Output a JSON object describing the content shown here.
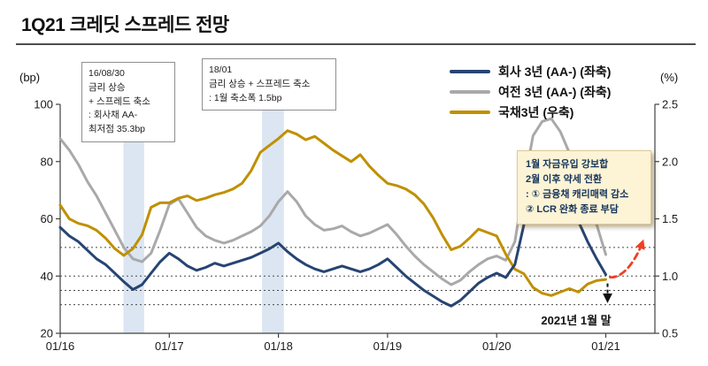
{
  "title": "1Q21 크레딧 스프레드 전망",
  "colors": {
    "corporate": "#274472",
    "capital": "#a9a9a9",
    "treasury": "#bf9000",
    "band": "#dce6f2",
    "axis": "#404040",
    "dotted_line": "#4a4a4a",
    "forecast_arrow": "#ee4023",
    "marker_black": "#111111",
    "outlook_box_bg": "#fdf3d5"
  },
  "annotations": {
    "box_1608": {
      "lines": [
        "16/08/30",
        "금리 상승",
        "+ 스프레드 축소",
        ": 회사채 AA-",
        "최저점 35.3bp"
      ]
    },
    "box_1801": {
      "lines": [
        "18/01",
        "금리 상승 + 스프레드 축소",
        ": 1월 축소폭 1.5bp"
      ]
    },
    "outlook_box": {
      "lines": [
        "1월 자금유입 강보합",
        "2월 이후 약세 전환",
        ": ① 금융채 캐리매력 감소",
        "② LCR 완화 종료 부담"
      ]
    },
    "end_label": "2021년 1월 말"
  },
  "chart_data": {
    "type": "line",
    "title": "1Q21 크레딧 스프레드 전망",
    "x_ticks": [
      "01/16",
      "01/17",
      "01/18",
      "01/19",
      "01/20",
      "01/21"
    ],
    "left_axis": {
      "label": "(bp)",
      "min": 20,
      "max": 100,
      "ticks": [
        100,
        80,
        60,
        40,
        20
      ]
    },
    "right_axis": {
      "label": "(%)",
      "min": 0.5,
      "max": 2.5,
      "ticks": [
        2.5,
        2.0,
        1.5,
        1.0,
        0.5
      ]
    },
    "dotted_lines_bp": [
      50,
      40,
      35,
      30
    ],
    "shaded_bands_x": [
      [
        2016.58,
        2016.77
      ],
      [
        2017.85,
        2018.05
      ]
    ],
    "legend_position": "top-right",
    "x": [
      2016,
      2016.0833,
      2016.1667,
      2016.25,
      2016.3333,
      2016.4167,
      2016.5,
      2016.5833,
      2016.6667,
      2016.75,
      2016.8333,
      2016.9167,
      2017,
      2017.0833,
      2017.1667,
      2017.25,
      2017.3333,
      2017.4167,
      2017.5,
      2017.5833,
      2017.6667,
      2017.75,
      2017.8333,
      2017.9167,
      2018,
      2018.0833,
      2018.1667,
      2018.25,
      2018.3333,
      2018.4167,
      2018.5,
      2018.5833,
      2018.6667,
      2018.75,
      2018.8333,
      2018.9167,
      2019,
      2019.0833,
      2019.1667,
      2019.25,
      2019.3333,
      2019.4167,
      2019.5,
      2019.5833,
      2019.6667,
      2019.75,
      2019.8333,
      2019.9167,
      2020,
      2020.0833,
      2020.1667,
      2020.25,
      2020.3333,
      2020.4167,
      2020.5,
      2020.5833,
      2020.6667,
      2020.75,
      2020.8333,
      2020.9167,
      2021
    ],
    "series": [
      {
        "name": "회사 3년 (AA-) (좌축)",
        "axis": "left",
        "unit": "bp",
        "color": "#274472",
        "values": [
          57,
          54,
          52,
          49,
          46,
          44,
          41,
          38,
          35.3,
          37,
          41,
          45,
          48,
          46,
          43.5,
          42,
          43,
          44.5,
          43.5,
          44.5,
          45.5,
          46.5,
          48,
          49.5,
          51.5,
          48.5,
          46,
          44,
          42.5,
          41.5,
          42.5,
          43.5,
          42.5,
          41.5,
          42.5,
          44,
          46,
          43,
          40,
          37.5,
          35,
          33,
          31,
          29.5,
          31.5,
          34.5,
          37.5,
          39.5,
          41,
          39.5,
          44,
          58,
          71,
          77,
          78,
          73,
          66,
          59,
          52,
          46,
          40.5
        ]
      },
      {
        "name": "여전 3년 (AA-) (좌축)",
        "axis": "left",
        "unit": "bp",
        "color": "#a9a9a9",
        "values": [
          88,
          84,
          79,
          73,
          68,
          62,
          56,
          50,
          46,
          45,
          48,
          56,
          65,
          67,
          62,
          57,
          54,
          52.5,
          51.5,
          52.5,
          54,
          55.5,
          57.5,
          61,
          66,
          69.5,
          66,
          61,
          58,
          56,
          56.5,
          57.5,
          55.5,
          54,
          55,
          56.5,
          58,
          54.5,
          50.5,
          47,
          44,
          41.5,
          39,
          37,
          38.5,
          41.5,
          44,
          46,
          47,
          45.5,
          52,
          72,
          89,
          94,
          95,
          90.5,
          83,
          75,
          67,
          58,
          47.5
        ]
      },
      {
        "name": "국채3년 (우축)",
        "axis": "right",
        "unit": "%",
        "color": "#bf9000",
        "values": [
          1.62,
          1.5,
          1.46,
          1.44,
          1.4,
          1.33,
          1.24,
          1.18,
          1.24,
          1.36,
          1.6,
          1.64,
          1.64,
          1.68,
          1.7,
          1.66,
          1.68,
          1.71,
          1.73,
          1.76,
          1.81,
          1.92,
          2.08,
          2.14,
          2.2,
          2.27,
          2.24,
          2.19,
          2.22,
          2.16,
          2.1,
          2.05,
          2.0,
          2.06,
          1.96,
          1.88,
          1.81,
          1.79,
          1.76,
          1.71,
          1.63,
          1.51,
          1.36,
          1.23,
          1.26,
          1.33,
          1.41,
          1.38,
          1.35,
          1.19,
          1.06,
          1.02,
          0.9,
          0.85,
          0.83,
          0.86,
          0.89,
          0.86,
          0.93,
          0.96,
          0.97
        ]
      }
    ]
  }
}
